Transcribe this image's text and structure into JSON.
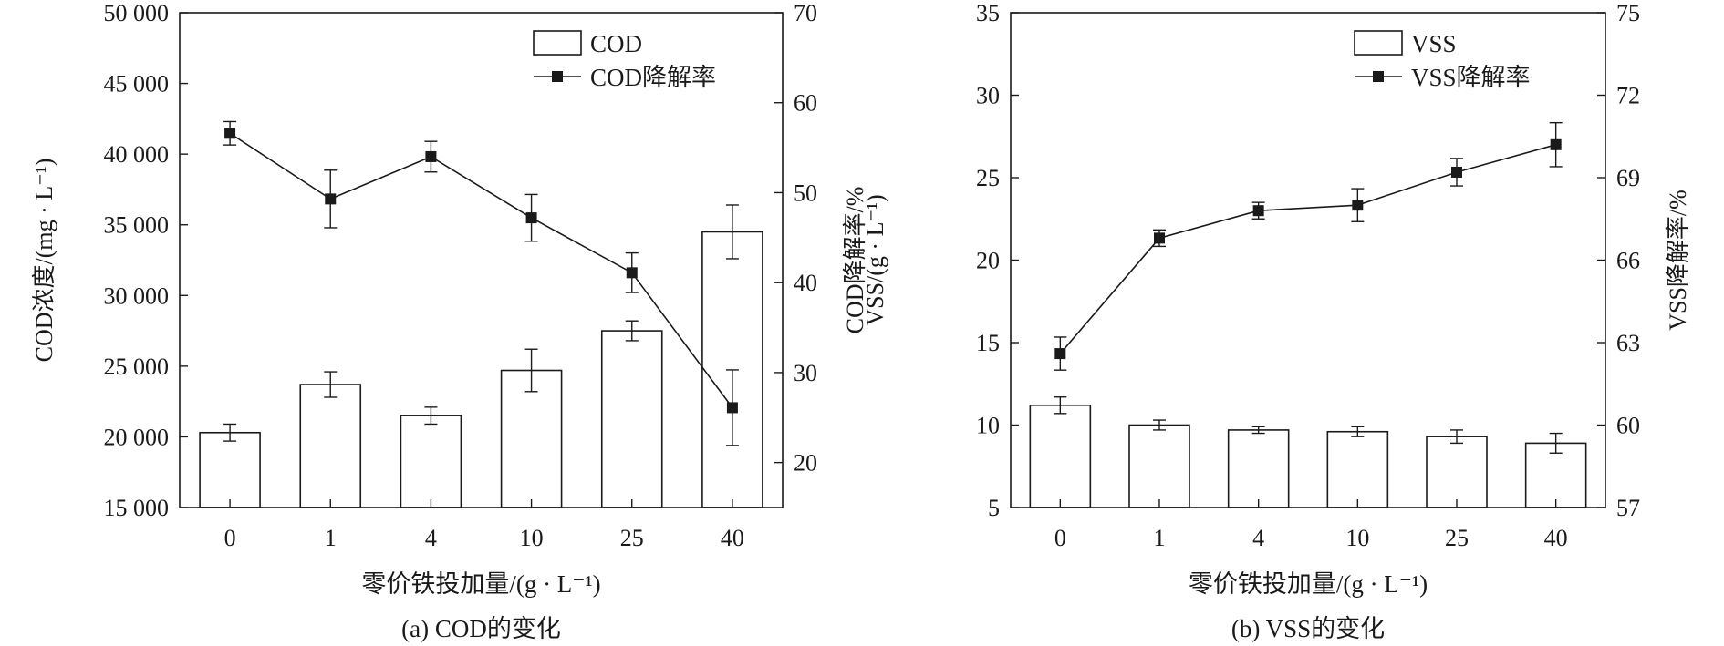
{
  "chart_data": [
    {
      "panel": "a",
      "type": "bar+line",
      "caption": "(a) COD的变化",
      "xlabel": "零价铁投加量/(g · L⁻¹)",
      "ylabel_left": "COD浓度/(mg · L⁻¹)",
      "ylabel_right": "COD降解率/%",
      "categories": [
        "0",
        "1",
        "4",
        "10",
        "25",
        "40"
      ],
      "ylim_left": [
        15000,
        50000
      ],
      "yticks_left": [
        15000,
        20000,
        25000,
        30000,
        35000,
        40000,
        45000,
        50000
      ],
      "ytick_labels_left": [
        "15 000",
        "20 000",
        "25 000",
        "30 000",
        "35 000",
        "40 000",
        "45 000",
        "50 000"
      ],
      "ylim_right": [
        15,
        70
      ],
      "yticks_right": [
        20,
        30,
        40,
        50,
        60,
        70
      ],
      "ytick_labels_right": [
        "20",
        "30",
        "40",
        "50",
        "60",
        "70"
      ],
      "legend_position": "top-right",
      "series": [
        {
          "name": "COD",
          "kind": "bar",
          "axis": "left",
          "values": [
            20300,
            23700,
            21500,
            24700,
            27500,
            34500
          ],
          "errors": [
            600,
            900,
            600,
            1500,
            700,
            1900
          ]
        },
        {
          "name": "COD降解率",
          "kind": "line",
          "axis": "right",
          "values": [
            56.6,
            49.3,
            54.0,
            47.2,
            41.1,
            26.1
          ],
          "errors": [
            1.3,
            3.2,
            1.7,
            2.6,
            2.2,
            4.2
          ]
        }
      ]
    },
    {
      "panel": "b",
      "type": "bar+line",
      "caption": "(b) VSS的变化",
      "xlabel": "零价铁投加量/(g · L⁻¹)",
      "ylabel_left": "VSS/(g · L⁻¹)",
      "ylabel_right": "VSS降解率/%",
      "categories": [
        "0",
        "1",
        "4",
        "10",
        "25",
        "40"
      ],
      "ylim_left": [
        5,
        35
      ],
      "yticks_left": [
        5,
        10,
        15,
        20,
        25,
        30,
        35
      ],
      "ytick_labels_left": [
        "5",
        "10",
        "15",
        "20",
        "25",
        "30",
        "35"
      ],
      "ylim_right": [
        57,
        75
      ],
      "yticks_right": [
        57,
        60,
        63,
        66,
        69,
        72,
        75
      ],
      "ytick_labels_right": [
        "57",
        "60",
        "63",
        "66",
        "69",
        "72",
        "75"
      ],
      "legend_position": "top-right",
      "series": [
        {
          "name": "VSS",
          "kind": "bar",
          "axis": "left",
          "values": [
            11.2,
            10.0,
            9.7,
            9.6,
            9.3,
            8.9
          ],
          "errors": [
            0.5,
            0.3,
            0.2,
            0.3,
            0.4,
            0.6
          ]
        },
        {
          "name": "VSS降解率",
          "kind": "line",
          "axis": "right",
          "values": [
            62.6,
            66.8,
            67.8,
            68.0,
            69.2,
            70.2
          ],
          "errors": [
            0.6,
            0.3,
            0.3,
            0.6,
            0.5,
            0.8
          ]
        }
      ]
    }
  ]
}
